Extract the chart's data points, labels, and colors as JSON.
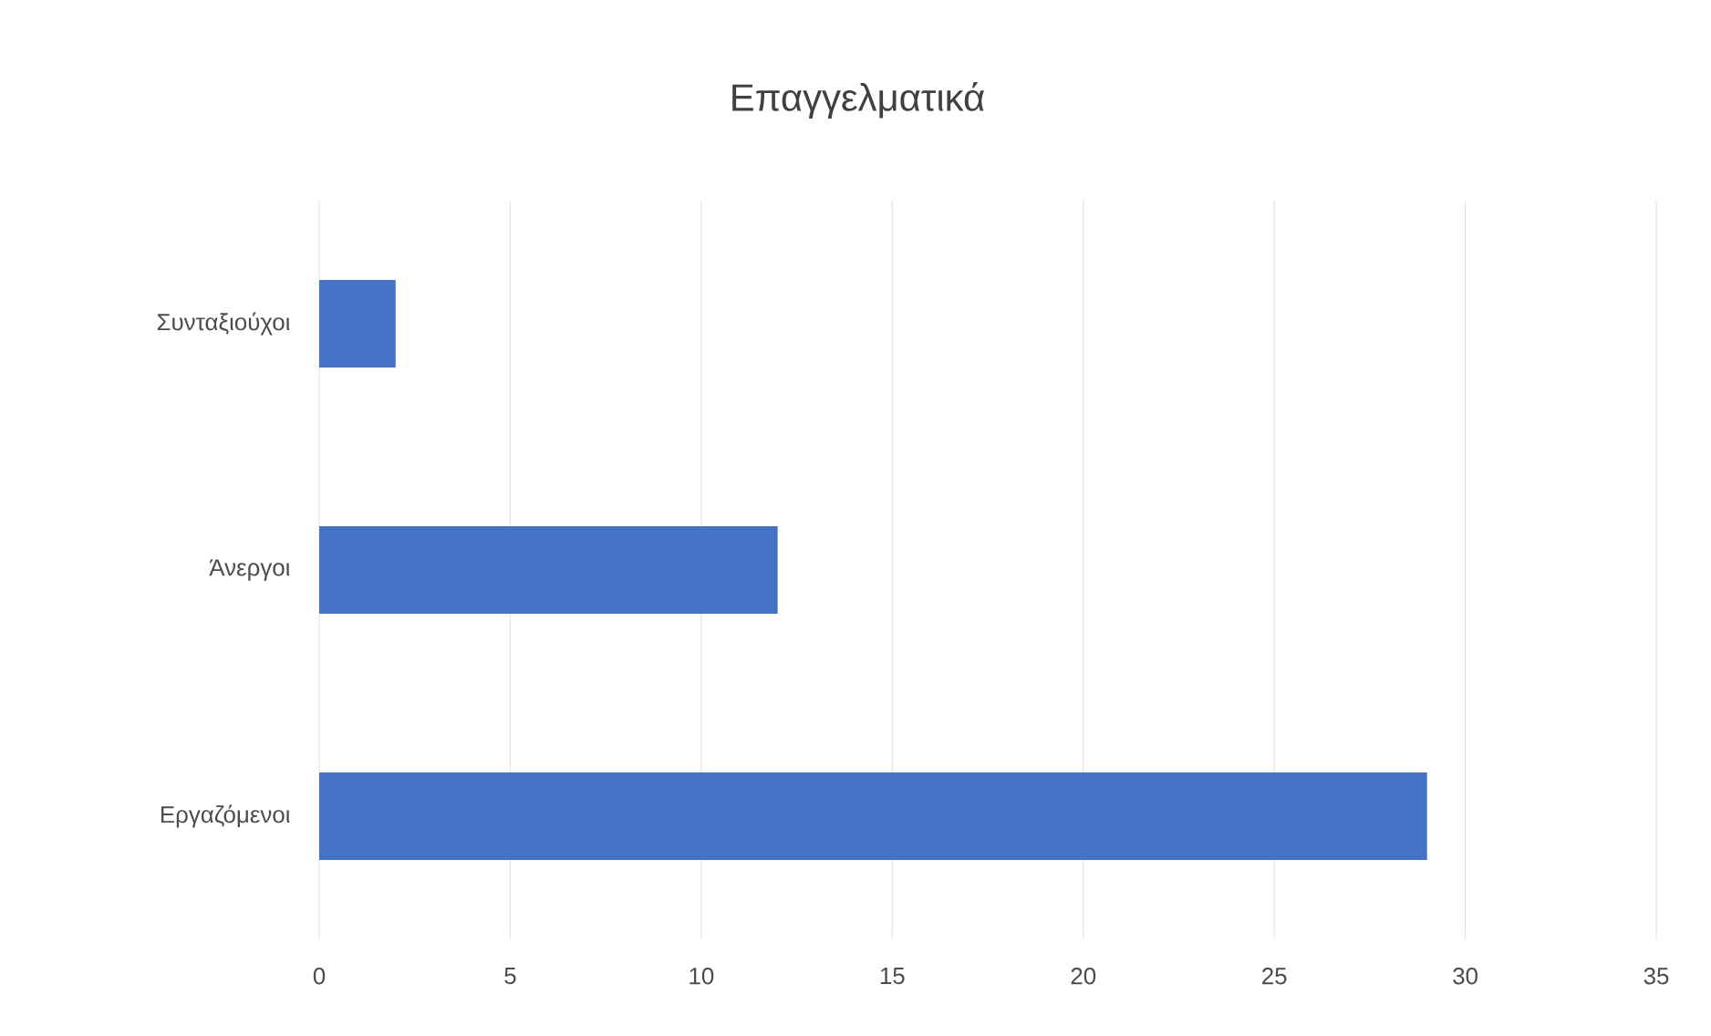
{
  "chart_data": {
    "type": "bar",
    "orientation": "horizontal",
    "title": "Επαγγελματικά",
    "categories": [
      "Συνταξιούχοι",
      "Άνεργοι",
      "Εργαζόμενοι"
    ],
    "values": [
      2,
      12,
      29
    ],
    "color": "#4472c4",
    "xlim": [
      0,
      35
    ],
    "xticks": [
      0,
      5,
      10,
      15,
      20,
      25,
      30,
      35
    ],
    "grid": "x"
  }
}
